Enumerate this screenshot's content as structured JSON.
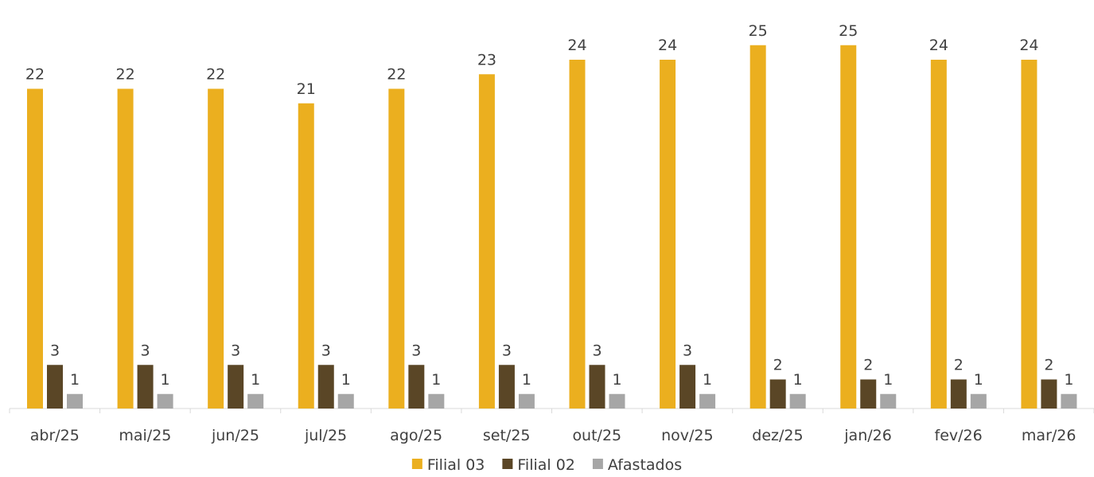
{
  "chart_data": {
    "type": "bar",
    "categories": [
      "abr/25",
      "mai/25",
      "jun/25",
      "jul/25",
      "ago/25",
      "set/25",
      "out/25",
      "nov/25",
      "dez/25",
      "jan/26",
      "fev/26",
      "mar/26"
    ],
    "series": [
      {
        "name": "Filial 03",
        "color": "#EBAF1F",
        "values": [
          22,
          22,
          22,
          21,
          22,
          23,
          24,
          24,
          25,
          25,
          24,
          24
        ]
      },
      {
        "name": "Filial 02",
        "color": "#5A4626",
        "values": [
          3,
          3,
          3,
          3,
          3,
          3,
          3,
          3,
          2,
          2,
          2,
          2
        ]
      },
      {
        "name": "Afastados",
        "color": "#A6A6A6",
        "values": [
          1,
          1,
          1,
          1,
          1,
          1,
          1,
          1,
          1,
          1,
          1,
          1
        ]
      }
    ],
    "data_labels": true,
    "legend_position": "bottom",
    "grid": false,
    "ylim": [
      0,
      26.5
    ],
    "title": "",
    "xlabel": "",
    "ylabel": ""
  }
}
